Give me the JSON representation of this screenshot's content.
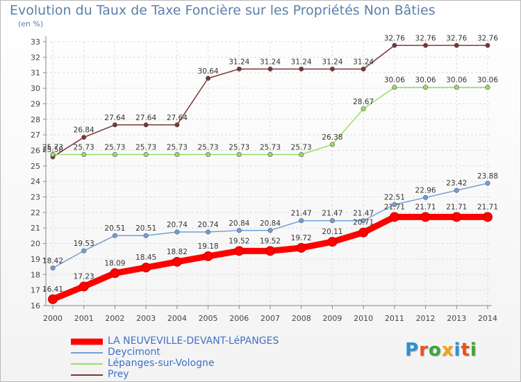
{
  "title": "Evolution du Taux de Taxe Foncière sur les Propriétés Non Bâties",
  "unit_label": "(en %)",
  "logo": {
    "text": "Proxiti",
    "letter_colors": [
      "#2f8fd6",
      "#e8531e",
      "#3aa63a",
      "#f4a21a",
      "#2f8fd6",
      "#e8531e",
      "#3aa63a"
    ]
  },
  "chart_data": {
    "type": "line",
    "title": "Evolution du Taux de Taxe Foncière sur les Propriétés Non Bâties",
    "ylabel": "(en %)",
    "xlabel": "",
    "ylim": [
      16,
      33
    ],
    "grid": true,
    "x": [
      "2000",
      "2001",
      "2002",
      "2003",
      "2004",
      "2005",
      "2006",
      "2007",
      "2008",
      "2009",
      "2010",
      "2011",
      "2012",
      "2013",
      "2014"
    ],
    "y_ticks": [
      "16",
      "17",
      "18",
      "19",
      "20",
      "21",
      "22",
      "23",
      "24",
      "25",
      "26",
      "27",
      "28",
      "29",
      "30",
      "31",
      "32",
      "33"
    ],
    "series": [
      {
        "name": "LA NEUVEVILLE-DEVANT-LéPANGES",
        "color": "#ff0000",
        "values": [
          16.41,
          17.23,
          18.09,
          18.45,
          18.82,
          19.18,
          19.52,
          19.52,
          19.72,
          20.11,
          20.71,
          21.71,
          21.71,
          21.71,
          21.71
        ],
        "labels": [
          "16.41",
          "17.23",
          "18.09",
          "18.45",
          "18.82",
          "19.18",
          "19.52",
          "19.52",
          "19.72",
          "20.11",
          "20.71",
          "21.71",
          "21.71",
          "21.71",
          "21.71"
        ]
      },
      {
        "name": "Deycimont",
        "color": "#6fa0d8",
        "values": [
          18.42,
          19.53,
          20.51,
          20.51,
          20.74,
          20.74,
          20.84,
          20.84,
          21.47,
          21.47,
          21.47,
          22.51,
          22.96,
          23.42,
          23.88
        ],
        "labels": [
          "18.42",
          "19.53",
          "20.51",
          "20.51",
          "20.74",
          "20.74",
          "20.84",
          "20.84",
          "21.47",
          "21.47",
          "21.47",
          "22.51",
          "22.96",
          "23.42",
          "23.88"
        ]
      },
      {
        "name": "Lépanges-sur-Vologne",
        "color": "#99dd66",
        "values": [
          25.73,
          25.73,
          25.73,
          25.73,
          25.73,
          25.73,
          25.73,
          25.73,
          25.73,
          26.38,
          28.67,
          30.06,
          30.06,
          30.06,
          30.06
        ],
        "labels": [
          "25.73",
          "25.73",
          "25.73",
          "25.73",
          "25.73",
          "25.73",
          "25.73",
          "25.73",
          "25.73",
          "26.38",
          "28.67",
          "30.06",
          "30.06",
          "30.06",
          "30.06"
        ]
      },
      {
        "name": "Prey",
        "color": "#7a3535",
        "values": [
          25.58,
          26.84,
          27.64,
          27.64,
          27.64,
          30.64,
          31.24,
          31.24,
          31.24,
          31.24,
          31.24,
          32.76,
          32.76,
          32.76,
          32.76
        ],
        "labels": [
          "25.58",
          "26.84",
          "27.64",
          "27.64",
          "27.64",
          "30.64",
          "31.24",
          "31.24",
          "31.24",
          "31.24",
          "31.24",
          "32.76",
          "32.76",
          "32.76",
          "32.76"
        ]
      }
    ],
    "legend": "bottom-left"
  }
}
